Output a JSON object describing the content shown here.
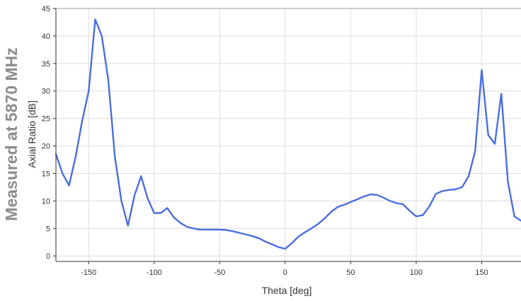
{
  "side_label": "Measured at 5870 MHz",
  "colors": {
    "series": "#4a6ee0",
    "grid": "#dcdcdc",
    "axis": "#333333",
    "side_label": "#8c8c8c"
  },
  "chart_data": {
    "type": "line",
    "xlabel": "Theta [deg]",
    "ylabel": "Axial Ratio [dB]",
    "xlim": [
      -175,
      180
    ],
    "ylim": [
      -1,
      45
    ],
    "xticks": [
      -150,
      -100,
      -50,
      0,
      50,
      100,
      150
    ],
    "yticks": [
      0,
      5,
      10,
      15,
      20,
      25,
      30,
      35,
      40,
      45
    ],
    "grid": true,
    "series": [
      {
        "x": [
          -175,
          -170,
          -165,
          -160,
          -155,
          -150,
          -145,
          -140,
          -135,
          -130,
          -125,
          -120,
          -115,
          -110,
          -105,
          -100,
          -95,
          -90,
          -85,
          -80,
          -75,
          -70,
          -65,
          -60,
          -55,
          -50,
          -45,
          -40,
          -35,
          -30,
          -25,
          -20,
          -15,
          -10,
          -5,
          0,
          5,
          10,
          15,
          20,
          25,
          30,
          35,
          40,
          45,
          50,
          55,
          60,
          65,
          70,
          75,
          80,
          85,
          90,
          95,
          100,
          105,
          110,
          115,
          120,
          125,
          130,
          135,
          140,
          145,
          150,
          155,
          160,
          165,
          170,
          175,
          180
        ],
        "y": [
          18.5,
          15.0,
          12.8,
          18.0,
          24.5,
          30.0,
          43.0,
          40.0,
          32.0,
          18.0,
          10.0,
          5.5,
          11.0,
          14.5,
          10.5,
          7.8,
          7.8,
          8.7,
          7.0,
          6.0,
          5.3,
          5.0,
          4.8,
          4.8,
          4.8,
          4.8,
          4.7,
          4.5,
          4.2,
          3.9,
          3.6,
          3.2,
          2.6,
          2.1,
          1.6,
          1.3,
          2.3,
          3.5,
          4.3,
          5.0,
          5.8,
          6.8,
          8.0,
          8.9,
          9.3,
          9.8,
          10.3,
          10.8,
          11.2,
          11.1,
          10.6,
          10.0,
          9.6,
          9.4,
          8.2,
          7.2,
          7.4,
          9.0,
          11.3,
          11.8,
          12.0,
          12.1,
          12.5,
          14.5,
          19.0,
          33.8,
          22.0,
          20.4,
          29.5,
          13.5,
          7.2,
          6.4
        ]
      }
    ]
  }
}
